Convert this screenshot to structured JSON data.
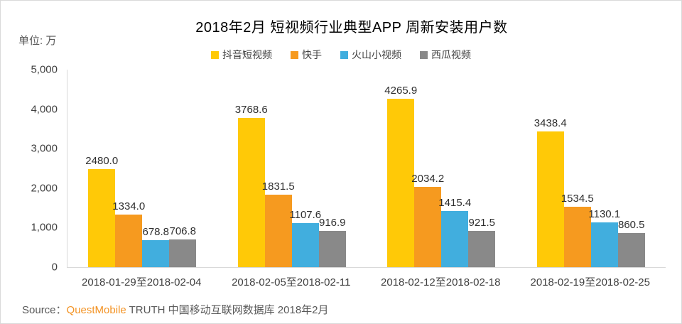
{
  "chart_data": {
    "type": "bar",
    "title": "2018年2月 短视频行业典型APP 周新安装用户数",
    "unit_label": "单位: 万",
    "categories": [
      "2018-01-29至2018-02-04",
      "2018-02-05至2018-02-11",
      "2018-02-12至2018-02-18",
      "2018-02-19至2018-02-25"
    ],
    "series": [
      {
        "name": "抖音短视频",
        "color": "#FFC907",
        "values": [
          2480.0,
          3768.6,
          4265.9,
          3438.4
        ]
      },
      {
        "name": "快手",
        "color": "#F69A1F",
        "values": [
          1334.0,
          1831.5,
          2034.2,
          1534.5
        ]
      },
      {
        "name": "火山小视频",
        "color": "#41AEDE",
        "values": [
          678.8,
          1107.6,
          1415.4,
          1130.1
        ]
      },
      {
        "name": "西瓜视频",
        "color": "#898989",
        "values": [
          706.8,
          916.9,
          921.5,
          860.5
        ]
      }
    ],
    "ylim": [
      0,
      5000
    ],
    "y_ticks": [
      "5,000",
      "4,000",
      "3,000",
      "2,000",
      "1,000",
      "0"
    ],
    "grid": false,
    "legend_position": "top",
    "value_label_decimals": 1,
    "axis_line_color": "#d9d9d9",
    "tick_text_color": "#404040"
  },
  "source": {
    "prefix": "Source：",
    "brand": "QuestMobile",
    "rest": " TRUTH 中国移动互联网数据库 2018年2月",
    "brand_color": "#F39324",
    "text_color": "#595959"
  }
}
